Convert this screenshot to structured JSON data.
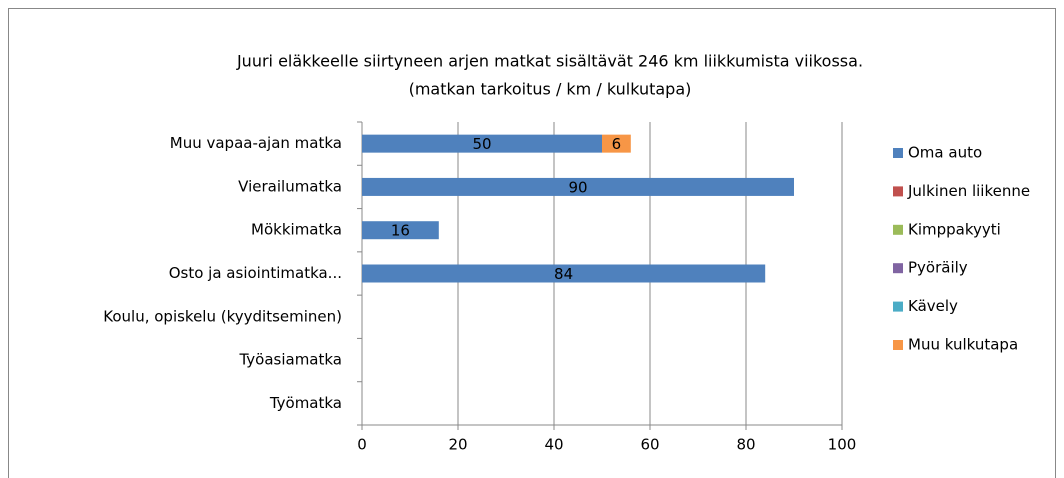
{
  "chart_data": {
    "type": "stacked_bar_horizontal",
    "title": "Juuri eläkkeelle siirtyneen arjen matkat sisältävät 246 km liikkumista viikossa.",
    "subtitle": "(matkan tarkoitus / km /  kulkutapa)",
    "categories": [
      "Muu vapaa-ajan matka",
      "Vierailumatka",
      "Mökkimatka",
      "Osto ja asiointimatka...",
      "Koulu, opiskelu (kyyditseminen)",
      "Työasiamatka",
      "Työmatka"
    ],
    "series": [
      {
        "name": "Oma auto",
        "color": "#4f81bd",
        "values": [
          50,
          90,
          16,
          84,
          null,
          null,
          null
        ]
      },
      {
        "name": "Julkinen liikenne",
        "color": "#c0504d",
        "values": [
          null,
          null,
          null,
          null,
          null,
          null,
          null
        ]
      },
      {
        "name": "Kimppakyyti",
        "color": "#9bbb59",
        "values": [
          null,
          null,
          null,
          null,
          null,
          null,
          null
        ]
      },
      {
        "name": "Pyöräily",
        "color": "#8064a2",
        "values": [
          null,
          null,
          null,
          null,
          null,
          null,
          null
        ]
      },
      {
        "name": "Kävely",
        "color": "#4bacc6",
        "values": [
          null,
          null,
          null,
          null,
          null,
          null,
          null
        ]
      },
      {
        "name": "Muu kulkutapa",
        "color": "#f79646",
        "values": [
          6,
          null,
          null,
          null,
          null,
          null,
          null
        ]
      }
    ],
    "xlim": [
      0,
      100
    ],
    "xticks": [
      0,
      20,
      40,
      60,
      80,
      100
    ],
    "grid": true,
    "legend": "right"
  }
}
